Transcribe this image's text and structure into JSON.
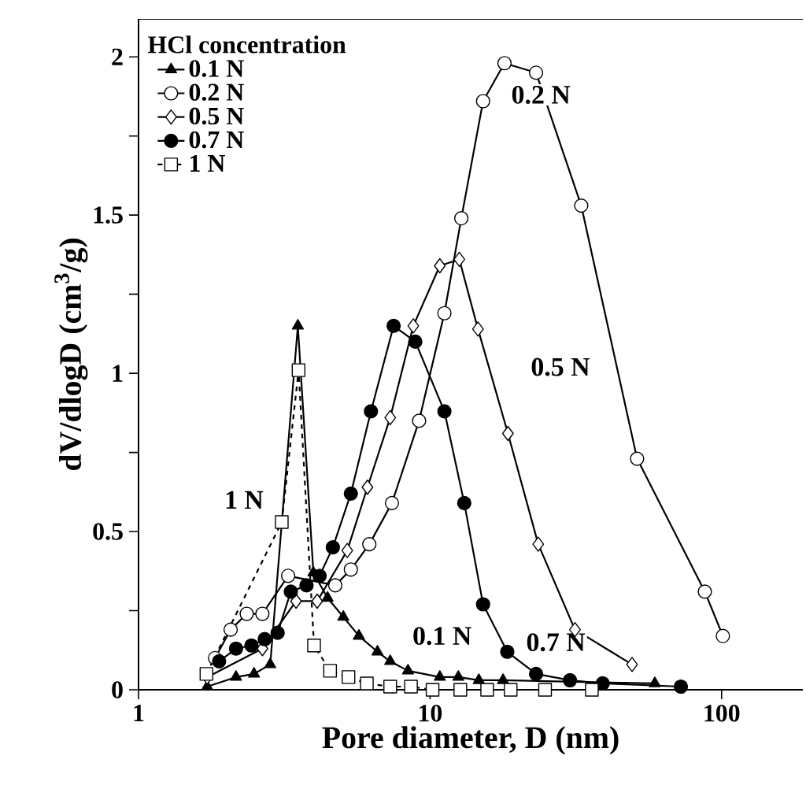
{
  "chart_data": {
    "type": "line",
    "xlabel": "Pore diameter, D (nm)",
    "ylabel": "dV/dlogD (cm$^{3}$/g)",
    "legend_title": "HCl concentration",
    "log": "x",
    "xlim": [
      1,
      190
    ],
    "ylim": [
      0,
      2.12
    ],
    "xticks": [
      1,
      10,
      100
    ],
    "yticks": [
      0,
      {
        "value": 0.25,
        "label": null
      },
      0.5,
      {
        "value": 0.75,
        "label": null
      },
      1,
      {
        "value": 1.25,
        "label": null
      },
      1.5,
      {
        "value": 1.75,
        "label": null
      },
      2
    ],
    "grid": false,
    "legend": "top left",
    "series": [
      {
        "name": "0.1 N",
        "color": "#000000",
        "marker": "triangle",
        "line_style": "solid",
        "x": [
          1.72,
          2.16,
          2.49,
          2.83,
          3.52,
          3.98,
          4.45,
          5.04,
          5.7,
          6.6,
          7.3,
          8.4,
          10.8,
          12.5,
          14.7,
          17.8,
          59
        ],
        "values": [
          0.01,
          0.04,
          0.05,
          0.08,
          1.15,
          0.37,
          0.29,
          0.23,
          0.17,
          0.12,
          0.09,
          0.06,
          0.04,
          0.04,
          0.03,
          0.03,
          0.02
        ]
      },
      {
        "name": "0.2 N",
        "color": "#000000",
        "marker": "circle",
        "line_style": "solid",
        "x": [
          1.83,
          2.07,
          2.35,
          2.66,
          3.26,
          4.73,
          5.35,
          6.19,
          7.4,
          9.17,
          11.2,
          12.8,
          15.2,
          18.0,
          23.1,
          33.0,
          51.3,
          87.6,
          101
        ],
        "values": [
          0.1,
          0.19,
          0.24,
          0.24,
          0.36,
          0.33,
          0.38,
          0.46,
          0.59,
          0.85,
          1.19,
          1.49,
          1.86,
          1.98,
          1.95,
          1.53,
          0.73,
          0.31,
          0.17
        ]
      },
      {
        "name": "0.5 N",
        "color": "#000000",
        "marker": "diamond",
        "line_style": "solid",
        "x": [
          1.72,
          2.66,
          3.47,
          4.1,
          5.2,
          6.1,
          7.3,
          8.76,
          10.8,
          12.6,
          14.6,
          18.5,
          23.5,
          31.4,
          49.3
        ],
        "values": [
          0.04,
          0.13,
          0.28,
          0.28,
          0.44,
          0.64,
          0.86,
          1.15,
          1.34,
          1.36,
          1.14,
          0.81,
          0.46,
          0.19,
          0.08
        ]
      },
      {
        "name": "0.7 N",
        "color": "#000000",
        "marker": "circle",
        "line_style": "solid",
        "x": [
          1.89,
          2.16,
          2.44,
          2.71,
          3.0,
          3.33,
          3.77,
          4.18,
          4.64,
          5.35,
          6.27,
          7.5,
          8.9,
          11.2,
          13.1,
          15.2,
          18.4,
          23.1,
          30.2,
          39.1,
          72.5
        ],
        "values": [
          0.09,
          0.13,
          0.14,
          0.16,
          0.18,
          0.31,
          0.33,
          0.36,
          0.45,
          0.62,
          0.88,
          1.15,
          1.1,
          0.88,
          0.59,
          0.27,
          0.12,
          0.05,
          0.03,
          0.02,
          0.01
        ]
      },
      {
        "name": "1 N",
        "color": "#000000",
        "marker": "square",
        "line_style": "dashed",
        "x": [
          1.71,
          3.1,
          3.54,
          4.0,
          4.54,
          5.25,
          6.07,
          7.3,
          8.6,
          10.2,
          12.7,
          15.7,
          18.9,
          24.8,
          35.9
        ],
        "values": [
          0.05,
          0.53,
          1.01,
          0.14,
          0.06,
          0.04,
          0.02,
          0.01,
          0.01,
          0,
          0,
          0,
          0,
          0,
          0
        ]
      }
    ],
    "annotations": [
      "0.2 N",
      "0.5 N",
      "1 N",
      "0.1 N",
      "0.7 N"
    ]
  }
}
